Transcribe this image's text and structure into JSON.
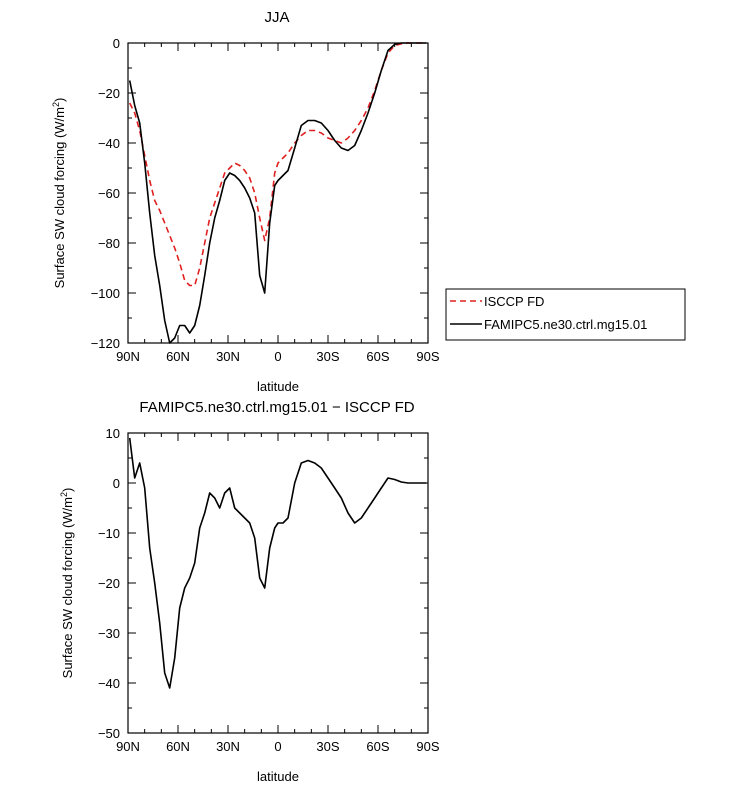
{
  "chart_data": [
    {
      "type": "line",
      "title": "JJA",
      "xlabel": "latitude",
      "ylabel_main": "Surface SW cloud forcing (W/m",
      "ylabel_sup": "2",
      "ylabel_end": ")",
      "xlim": [
        90,
        -90
      ],
      "ylim": [
        -120,
        0
      ],
      "x_ticks": [
        90,
        60,
        30,
        0,
        -30,
        -60,
        -90
      ],
      "x_tick_labels": [
        "90N",
        "60N",
        "30N",
        "0",
        "30S",
        "60S",
        "90S"
      ],
      "y_ticks": [
        0,
        -20,
        -40,
        -60,
        -80,
        -100,
        -120
      ],
      "y_tick_labels": [
        "0",
        "−20",
        "−40",
        "−60",
        "−80",
        "−100",
        "−120"
      ],
      "legend_position": "right, outside",
      "series": [
        {
          "name": "ISCCP FD",
          "color": "#e02020",
          "dash": "dashed",
          "x": [
            89,
            86,
            83,
            80,
            77,
            74,
            71,
            68,
            65,
            62,
            59,
            56,
            53,
            50,
            47,
            44,
            41,
            38,
            35,
            32,
            29,
            26,
            23,
            20,
            17,
            14,
            11,
            8,
            5,
            2,
            0,
            -3,
            -6,
            -10,
            -14,
            -18,
            -22,
            -26,
            -30,
            -34,
            -38,
            -42,
            -46,
            -50,
            -54,
            -58,
            -62,
            -66,
            -70,
            -74,
            -78,
            -82,
            -86,
            -89
          ],
          "y": [
            -24,
            -28,
            -35,
            -45,
            -55,
            -63,
            -67,
            -72,
            -77,
            -82,
            -88,
            -95,
            -97,
            -97,
            -90,
            -80,
            -70,
            -64,
            -58,
            -52,
            -50,
            -48,
            -49,
            -51,
            -54,
            -60,
            -70,
            -79,
            -70,
            -52,
            -48,
            -46,
            -44,
            -40,
            -37,
            -35,
            -35,
            -36,
            -38,
            -39,
            -40,
            -38,
            -35,
            -31,
            -26,
            -19,
            -11,
            -4,
            -1,
            -0.3,
            0,
            0,
            0,
            0
          ]
        },
        {
          "name": "FAMIPC5.ne30.ctrl.mg15.01",
          "color": "#000000",
          "dash": "solid",
          "x": [
            89,
            86,
            83,
            80,
            77,
            74,
            71,
            68,
            65,
            62,
            59,
            56,
            53,
            50,
            47,
            44,
            41,
            38,
            35,
            32,
            29,
            26,
            23,
            20,
            17,
            14,
            11,
            8,
            5,
            2,
            0,
            -3,
            -6,
            -10,
            -14,
            -18,
            -22,
            -26,
            -30,
            -34,
            -38,
            -42,
            -46,
            -50,
            -54,
            -58,
            -62,
            -66,
            -70,
            -74,
            -78,
            -82,
            -86,
            -89
          ],
          "y": [
            -15,
            -25,
            -32,
            -48,
            -68,
            -85,
            -97,
            -111,
            -120,
            -118,
            -113,
            -113,
            -116,
            -113,
            -105,
            -93,
            -80,
            -70,
            -63,
            -55,
            -52,
            -53,
            -55,
            -58,
            -62,
            -68,
            -93,
            -100,
            -72,
            -57,
            -55,
            -53,
            -51,
            -42,
            -33,
            -31,
            -31,
            -32,
            -35,
            -39,
            -42,
            -43,
            -41,
            -35,
            -28,
            -20,
            -11,
            -3,
            -0.5,
            0,
            0,
            0,
            0,
            0
          ]
        }
      ]
    },
    {
      "type": "line",
      "title": "FAMIPC5.ne30.ctrl.mg15.01 − ISCCP FD",
      "xlabel": "latitude",
      "ylabel_main": "Surface SW cloud forcing (W/m",
      "ylabel_sup": "2",
      "ylabel_end": ")",
      "xlim": [
        90,
        -90
      ],
      "ylim": [
        -50,
        10
      ],
      "x_ticks": [
        90,
        60,
        30,
        0,
        -30,
        -60,
        -90
      ],
      "x_tick_labels": [
        "90N",
        "60N",
        "30N",
        "0",
        "30S",
        "60S",
        "90S"
      ],
      "y_ticks": [
        10,
        0,
        -10,
        -20,
        -30,
        -40,
        -50
      ],
      "y_tick_labels": [
        "10",
        "0",
        "−10",
        "−20",
        "−30",
        "−40",
        "−50"
      ],
      "series": [
        {
          "color": "#000000",
          "dash": "solid",
          "x": [
            89,
            86,
            83,
            80,
            77,
            74,
            71,
            68,
            65,
            62,
            59,
            56,
            53,
            50,
            47,
            44,
            41,
            38,
            35,
            32,
            29,
            26,
            23,
            20,
            17,
            14,
            11,
            8,
            5,
            2,
            0,
            -3,
            -6,
            -10,
            -14,
            -18,
            -22,
            -26,
            -30,
            -34,
            -38,
            -42,
            -46,
            -50,
            -54,
            -58,
            -62,
            -66,
            -70,
            -74,
            -78,
            -82,
            -86,
            -89
          ],
          "y": [
            9,
            1,
            4,
            -1,
            -13,
            -20,
            -28,
            -38,
            -41,
            -35,
            -25,
            -21,
            -19,
            -16,
            -9,
            -6,
            -2,
            -3,
            -5,
            -2,
            -1,
            -5,
            -6,
            -7,
            -8,
            -11,
            -19,
            -21,
            -13,
            -9,
            -8,
            -8,
            -7,
            0,
            4,
            4.5,
            4,
            3,
            1,
            -1,
            -3,
            -6,
            -8,
            -7,
            -5,
            -3,
            -1,
            1,
            0.7,
            0.2,
            0,
            0,
            0,
            0
          ]
        }
      ]
    }
  ]
}
